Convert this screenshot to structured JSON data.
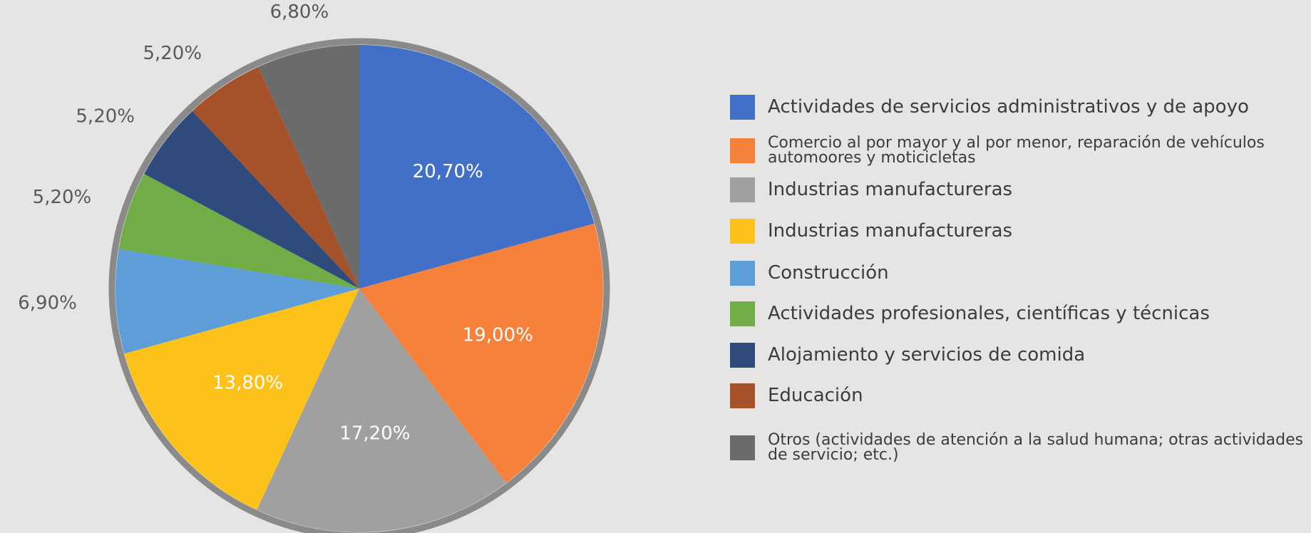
{
  "chart_data": {
    "type": "pie",
    "categories": [
      "Actividades de servicios administrativos y de apoyo",
      "Comercio al por mayor y al por menor, reparación de vehículos automoores y moticicletas",
      "Industrias manufactureras",
      "Industrias manufactureras",
      "Construcción",
      "Actividades profesionales, científicas y técnicas",
      "Alojamiento y servicios de comida",
      "Educación",
      "Otros (actividades de atención a la salud humana; otras actividades de servicio; etc.)"
    ],
    "values": [
      20.7,
      19.0,
      17.2,
      13.8,
      6.9,
      5.2,
      5.2,
      5.2,
      6.8
    ],
    "value_labels": [
      "20,70%",
      "19,00%",
      "17,20%",
      "13,80%",
      "6,90%",
      "5,20%",
      "5,20%",
      "5,20%",
      "6,80%"
    ],
    "colors": [
      "#4270c8",
      "#f5813a",
      "#a0a0a0",
      "#fcc21a",
      "#5e9ed8",
      "#70ad47",
      "#2f4b7c",
      "#a5522a",
      "#6b6b6b"
    ],
    "legend": "right"
  }
}
